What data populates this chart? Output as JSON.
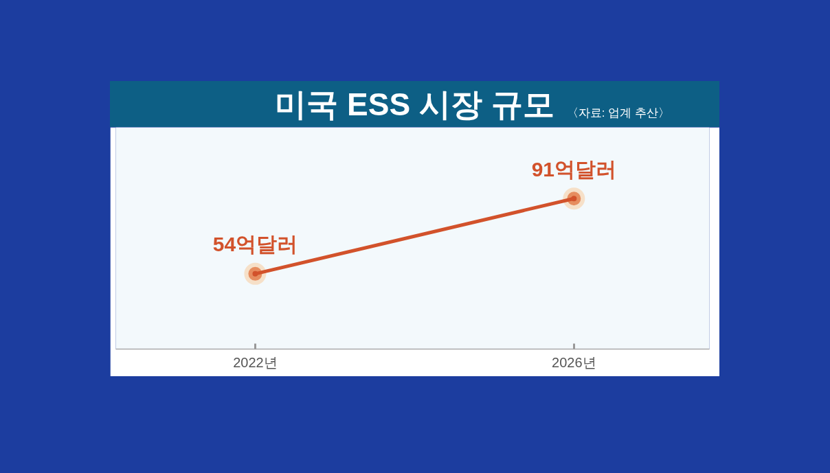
{
  "chart_data": {
    "type": "line",
    "title": "미국 ESS 시장 규모",
    "annotations": [
      "〈자료: 업계 추산〉"
    ],
    "x": [
      2022,
      2026
    ],
    "values": [
      54,
      91
    ],
    "value_labels": [
      "54억달러",
      "91억달러"
    ],
    "color": "#d2522b",
    "marker": "circle",
    "xlim": [
      2020.25,
      2027.7
    ],
    "xticks": [
      {
        "value": 2022,
        "label": "2022년"
      },
      {
        "value": 2026,
        "label": "2026년"
      }
    ],
    "ylim": [
      17,
      126
    ],
    "tick_labels": "x"
  }
}
